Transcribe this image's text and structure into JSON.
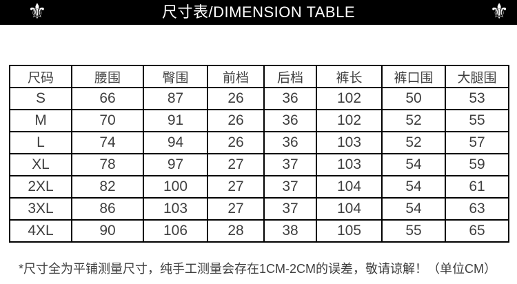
{
  "title_bar": {
    "title": "尺寸表/DIMENSION TABLE",
    "bg_color": "#000000",
    "text_color": "#ffffff",
    "left_icon": "fleur-de-lis",
    "right_icon": "fleur-de-lis",
    "icon_glyph": "⚜"
  },
  "size_table": {
    "columns": [
      "尺码",
      "腰围",
      "臀围",
      "前档",
      "后档",
      "裤长",
      "裤口围",
      "大腿围"
    ],
    "rows": [
      {
        "size": "S",
        "values": [
          "66",
          "87",
          "26",
          "36",
          "102",
          "50",
          "53"
        ]
      },
      {
        "size": "M",
        "values": [
          "70",
          "91",
          "26",
          "36",
          "102",
          "52",
          "55"
        ]
      },
      {
        "size": "L",
        "values": [
          "74",
          "94",
          "26",
          "36",
          "103",
          "52",
          "57"
        ]
      },
      {
        "size": "XL",
        "values": [
          "78",
          "97",
          "27",
          "37",
          "103",
          "54",
          "59"
        ]
      },
      {
        "size": "2XL",
        "values": [
          "82",
          "100",
          "27",
          "37",
          "104",
          "54",
          "61"
        ]
      },
      {
        "size": "3XL",
        "values": [
          "86",
          "103",
          "27",
          "37",
          "104",
          "54",
          "63"
        ]
      },
      {
        "size": "4XL",
        "values": [
          "90",
          "106",
          "28",
          "38",
          "105",
          "55",
          "65"
        ]
      }
    ]
  },
  "footnote": "*尺寸全为平铺测量尺寸，纯手工测量会存在1CM-2CM的误差，敬请谅解！（单位CM）"
}
